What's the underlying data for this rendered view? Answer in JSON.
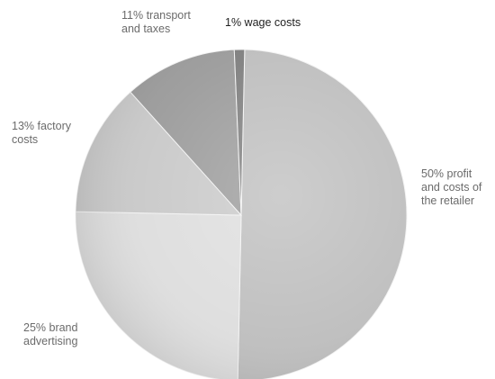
{
  "chart_data": {
    "type": "pie",
    "slices": [
      {
        "label": "50% profit\nand costs of\nthe retailer",
        "value": 50,
        "color": "#bdbdbd"
      },
      {
        "label": "25% brand\nadvertising",
        "value": 25,
        "color": "#dddddd"
      },
      {
        "label": "13% factory\ncosts",
        "value": 13,
        "color": "#c8c8c8"
      },
      {
        "label": "11% transport\nand taxes",
        "value": 11,
        "color": "#9a9a9a"
      },
      {
        "label": "1% wage costs",
        "value": 1,
        "color": "#7d7d7d"
      }
    ],
    "start_angle_deg": 1.2,
    "direction": "clockwise",
    "legend": "none"
  }
}
